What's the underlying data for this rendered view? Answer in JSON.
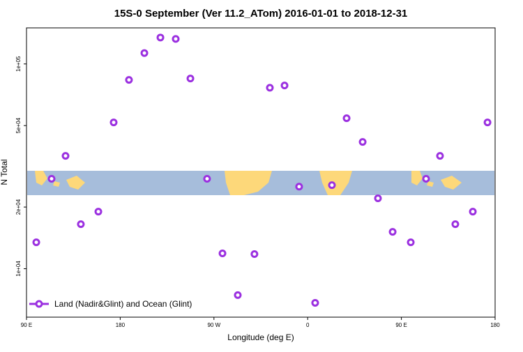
{
  "chart_data": {
    "type": "scatter",
    "title": "15S-0 September (Ver 11.2_ATom)   2016-01-01 to 2018-12-31",
    "x_label": "Longitude (deg E)",
    "y_label": "N Total",
    "log_y": true,
    "legend_position": "bottom-left",
    "xlim": [
      90,
      540
    ],
    "xticks": [
      {
        "value": 90,
        "label": "90 E"
      },
      180,
      {
        "value": 270,
        "label": "90 W"
      },
      {
        "value": 360,
        "label": "0"
      },
      {
        "value": 450,
        "label": "90 E"
      },
      {
        "value": 540,
        "label": "180"
      }
    ],
    "ylim": [
      5800,
      150000
    ],
    "yticks": [
      {
        "value": 10000,
        "label": "1e+04"
      },
      {
        "value": 20000,
        "label": "2e+04"
      },
      {
        "value": 50000,
        "label": "5e+04"
      },
      {
        "value": 100000,
        "label": "1e+05"
      }
    ],
    "series": [
      {
        "name": "Land (Nadir&Glint) and Ocean (Glint)",
        "color": "#9b30e0",
        "x": [
          99.4,
          114.1,
          127.5,
          142.2,
          159,
          173.7,
          188.4,
          203.2,
          218.6,
          233.3,
          247.4,
          263.4,
          278.2,
          292.9,
          308.9,
          323.7,
          337.8,
          351.8,
          367.2,
          383.3,
          397.4,
          412.8,
          427.5,
          441.6,
          459,
          473.7,
          487.1,
          501.8,
          518.6,
          532.7
        ],
        "values": [
          13460,
          27480,
          35560,
          16500,
          19000,
          51800,
          83600,
          113000,
          134600,
          132500,
          84900,
          27480,
          11880,
          7430,
          11790,
          76500,
          78500,
          25170,
          6810,
          25590,
          54300,
          41600,
          22070,
          15140,
          13460,
          27480,
          35560,
          16500,
          19000,
          51800
        ]
      }
    ]
  }
}
